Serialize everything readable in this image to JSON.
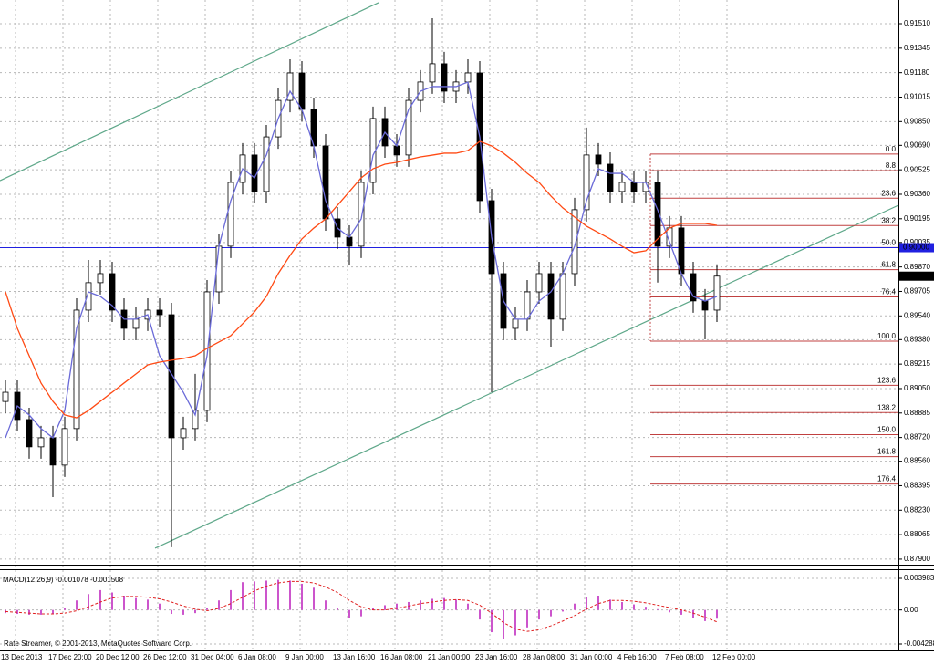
{
  "chart_data": [
    {
      "type": "candlestick",
      "categories": [
        "13 Dec 2013",
        null,
        null,
        null,
        "17 Dec 20:00",
        null,
        null,
        null,
        "20 Dec 12:00",
        null,
        null,
        null,
        "26 Dec 12:00",
        null,
        null,
        null,
        "31 Dec 04:00",
        null,
        null,
        null,
        "6 Jan 08:00",
        null,
        null,
        null,
        "9 Jan 00:00",
        null,
        null,
        null,
        "13 Jan 16:00",
        null,
        null,
        null,
        "16 Jan 08:00",
        null,
        null,
        null,
        "21 Jan 00:00",
        null,
        null,
        null,
        "23 Jan 16:00",
        null,
        null,
        null,
        "28 Jan 08:00",
        null,
        null,
        null,
        "31 Jan 00:00",
        null,
        null,
        null,
        "4 Feb 16:00",
        null,
        null,
        null,
        "7 Feb 08:00",
        null,
        null,
        null,
        "12 Feb 00:00"
      ],
      "open": [
        0.88963,
        0.89025,
        0.88841,
        0.88657,
        0.88718,
        0.88534,
        0.8878,
        0.89579,
        0.89764,
        0.89825,
        0.89579,
        0.89456,
        0.89518,
        0.89579,
        0.89548,
        0.88718,
        0.8878,
        0.88903,
        0.89702,
        0.9001,
        0.9044,
        0.90625,
        0.90379,
        0.90747,
        0.90993,
        0.91178,
        0.90932,
        0.90686,
        0.90194,
        0.90071,
        0.9001,
        0.9044,
        0.90871,
        0.90686,
        0.90625,
        0.90993,
        0.91117,
        0.9124,
        0.91055,
        0.91117,
        0.91178,
        0.90317,
        0.89825,
        0.89456,
        0.89518,
        0.89702,
        0.89825,
        0.89518,
        0.89825,
        0.90256,
        0.90625,
        0.90563,
        0.90379,
        0.9044,
        0.90379,
        0.9044,
        0.9001,
        0.90133,
        0.89825,
        0.89641,
        0.89579
      ],
      "high": [
        0.89105,
        0.89105,
        0.88921,
        0.88798,
        0.88798,
        0.8886,
        0.89659,
        0.89917,
        0.89917,
        0.89905,
        0.89659,
        0.89598,
        0.89659,
        0.89659,
        0.89628,
        0.8886,
        0.89149,
        0.89782,
        0.9009,
        0.9052,
        0.90705,
        0.90705,
        0.90827,
        0.91073,
        0.9127,
        0.91258,
        0.91012,
        0.90766,
        0.90274,
        0.90151,
        0.9052,
        0.90951,
        0.90951,
        0.90766,
        0.91073,
        0.91197,
        0.91547,
        0.9132,
        0.91197,
        0.9127,
        0.91258,
        0.90397,
        0.89905,
        0.89598,
        0.89782,
        0.89905,
        0.89905,
        0.89905,
        0.90336,
        0.9081,
        0.90705,
        0.90643,
        0.9052,
        0.9052,
        0.9052,
        0.9052,
        0.90213,
        0.90213,
        0.89905,
        0.89721,
        0.89888
      ],
      "low": [
        0.88883,
        0.88761,
        0.88577,
        0.88577,
        0.88318,
        0.88454,
        0.887,
        0.89499,
        0.89684,
        0.89499,
        0.89376,
        0.89376,
        0.89438,
        0.89468,
        0.8798,
        0.88638,
        0.887,
        0.88823,
        0.89622,
        0.8993,
        0.9036,
        0.90299,
        0.90299,
        0.90667,
        0.90913,
        0.90852,
        0.90606,
        0.90114,
        0.89991,
        0.8988,
        0.8993,
        0.9036,
        0.90606,
        0.90545,
        0.90545,
        0.90913,
        0.91037,
        0.90975,
        0.90975,
        0.91037,
        0.90237,
        0.89025,
        0.89376,
        0.89376,
        0.89438,
        0.89622,
        0.89333,
        0.89438,
        0.89745,
        0.90176,
        0.90483,
        0.90299,
        0.90299,
        0.90299,
        0.90299,
        0.89765,
        0.8993,
        0.89745,
        0.89561,
        0.89382,
        0.89499
      ],
      "close": [
        0.89025,
        0.88841,
        0.88657,
        0.88718,
        0.88534,
        0.8878,
        0.89579,
        0.89764,
        0.89825,
        0.89579,
        0.89456,
        0.89518,
        0.89579,
        0.89548,
        0.88718,
        0.8878,
        0.88903,
        0.89702,
        0.9001,
        0.9044,
        0.90625,
        0.90379,
        0.90747,
        0.90993,
        0.91178,
        0.90932,
        0.90686,
        0.90194,
        0.90071,
        0.9001,
        0.9044,
        0.90871,
        0.90686,
        0.90625,
        0.90993,
        0.91117,
        0.9124,
        0.91055,
        0.91117,
        0.91178,
        0.90317,
        0.89825,
        0.89456,
        0.89518,
        0.89702,
        0.89825,
        0.89518,
        0.89825,
        0.90256,
        0.90625,
        0.90563,
        0.90379,
        0.9044,
        0.90379,
        0.9044,
        0.9001,
        0.90133,
        0.89825,
        0.89641,
        0.89579,
        0.89808
      ],
      "color": "#000000",
      "series": [
        {
          "color": "#6a6ad8",
          "values": [
            0.88718,
            0.88933,
            0.88872,
            0.8878,
            0.88718,
            0.88902,
            0.89456,
            0.89702,
            0.89671,
            0.8961,
            0.89518,
            0.89518,
            0.89548,
            0.89271,
            0.89148,
            0.89025,
            0.88872,
            0.89271,
            0.90009,
            0.90317,
            0.90532,
            0.90471,
            0.90624,
            0.9087,
            0.91055,
            0.90932,
            0.90686,
            0.90317,
            0.90132,
            0.90071,
            0.90194,
            0.90624,
            0.90778,
            0.90686,
            0.90932,
            0.91055,
            0.91086,
            0.91086,
            0.91086,
            0.91116,
            0.90747,
            0.90071,
            0.8964,
            0.89518,
            0.89518,
            0.8964,
            0.89702,
            0.89825,
            0.90009,
            0.90317,
            0.90532,
            0.90501,
            0.90501,
            0.9044,
            0.9044,
            0.90255,
            0.9004,
            0.89825,
            0.89671,
            0.8964,
            0.89671
          ]
        },
        {
          "color": "#ff4a14",
          "values": [
            0.89702,
            0.89456,
            0.89271,
            0.89087,
            0.88964,
            0.88872,
            0.88853,
            0.88902,
            0.88964,
            0.89025,
            0.89087,
            0.89148,
            0.8921,
            0.89228,
            0.89241,
            0.89253,
            0.89271,
            0.89321,
            0.89364,
            0.89407,
            0.89487,
            0.89567,
            0.89671,
            0.89825,
            0.89948,
            0.90059,
            0.90132,
            0.90194,
            0.90286,
            0.90378,
            0.90471,
            0.90532,
            0.90563,
            0.90575,
            0.90594,
            0.90612,
            0.90624,
            0.90637,
            0.90637,
            0.90655,
            0.90717,
            0.90686,
            0.90637,
            0.90575,
            0.90501,
            0.9044,
            0.90348,
            0.90268,
            0.90206,
            0.90145,
            0.90102,
            0.90059,
            0.90009,
            0.89966,
            0.89979,
            0.90059,
            0.90132,
            0.90163,
            0.90163,
            0.90163,
            0.90151
          ]
        }
      ],
      "channel": {
        "color": "#5fa88a",
        "upper": [
          0.90452,
          0.91652
        ],
        "lower": [
          0.87974,
          0.90286
        ]
      },
      "hline": {
        "value": 0.9,
        "label": "0.90000",
        "color": "#2020e0"
      },
      "last_price": {
        "value": 0.89808,
        "label": "0.89808"
      },
      "fibo": {
        "color": "#c04040",
        "high": 0.90631,
        "low": 0.8937,
        "levels": [
          {
            "value": 0,
            "label": "0.0"
          },
          8.8,
          23.6,
          38.2,
          {
            "value": 50,
            "label": "50.0"
          },
          61.8,
          76.4,
          {
            "value": 100,
            "label": "100.0"
          },
          123.6,
          138.2,
          {
            "value": 150,
            "label": "150.0"
          },
          161.8,
          176.4
        ]
      },
      "ylim": [
        0.87875,
        0.9167
      ],
      "yticks": [
        {
          "value": 0.9151,
          "label": "0.91510"
        },
        {
          "value": 0.91345,
          "label": "0.91345"
        },
        {
          "value": 0.9118,
          "label": "0.91180"
        },
        {
          "value": 0.91015,
          "label": "0.91015"
        },
        {
          "value": 0.9085,
          "label": "0.90850"
        },
        {
          "value": 0.9069,
          "label": "0.90690"
        },
        {
          "value": 0.90525,
          "label": "0.90525"
        },
        {
          "value": 0.9036,
          "label": "0.90360"
        },
        {
          "value": 0.90195,
          "label": "0.90195"
        },
        {
          "value": 0.90035,
          "label": "0.90035"
        },
        {
          "value": 0.8987,
          "label": "0.89870"
        },
        {
          "value": 0.89705,
          "label": "0.89705"
        },
        {
          "value": 0.8954,
          "label": "0.89540"
        },
        {
          "value": 0.8938,
          "label": "0.89380"
        },
        {
          "value": 0.89215,
          "label": "0.89215"
        },
        {
          "value": 0.8905,
          "label": "0.89050"
        },
        {
          "value": 0.88885,
          "label": "0.88885"
        },
        {
          "value": 0.8872,
          "label": "0.88720"
        },
        {
          "value": 0.8856,
          "label": "0.88560"
        },
        {
          "value": 0.88395,
          "label": "0.88395"
        },
        {
          "value": 0.8823,
          "label": "0.88230"
        },
        {
          "value": 0.88065,
          "label": "0.88065"
        },
        {
          "value": 0.879,
          "label": "0.87900"
        }
      ],
      "grid": true
    },
    {
      "type": "macd",
      "title": "MACD(12,26,9) -0.001078 -0.001508",
      "color": "#cc55cc",
      "values": [
        -0.0004,
        -0.0005,
        -0.0006,
        -0.0006,
        -0.0005,
        0.0002,
        0.0012,
        0.002,
        0.0025,
        0.0022,
        0.0018,
        0.0015,
        0.0013,
        0.0008,
        -0.0005,
        -0.0006,
        -0.0004,
        0.0003,
        0.0012,
        0.0025,
        0.0035,
        0.0036,
        0.0037,
        0.0038,
        0.0037,
        0.0033,
        0.0028,
        0.0012,
        0.0002,
        -0.001,
        -0.0008,
        0.0002,
        0.0006,
        0.0008,
        0.001,
        0.0012,
        0.0014,
        0.0015,
        0.0013,
        0.0008,
        -0.0012,
        -0.0028,
        -0.0037,
        -0.0032,
        -0.0022,
        -0.0012,
        -0.0008,
        -0.0002,
        0.0008,
        0.0016,
        0.0018,
        0.0013,
        0.001,
        0.0007,
        0.0004,
        0.0001,
        -0.0003,
        -0.0006,
        -0.001,
        -0.0014,
        -0.0011
      ],
      "series": [
        {
          "color": "#e02020",
          "values": [
            -0.0002,
            -0.0003,
            -0.0004,
            -0.0005,
            -0.0005,
            -0.0004,
            -0.0001,
            0.0004,
            0.001,
            0.0015,
            0.0017,
            0.0017,
            0.0016,
            0.0014,
            0.001,
            0.0005,
            0.0001,
            -0.0001,
            0.0002,
            0.0008,
            0.0016,
            0.0024,
            0.003,
            0.0034,
            0.0036,
            0.0036,
            0.0034,
            0.0029,
            0.0022,
            0.0012,
            0.0004,
            0,
            0,
            0.0002,
            0.0005,
            0.0008,
            0.001,
            0.0012,
            0.0013,
            0.0012,
            0.0006,
            -0.0004,
            -0.0016,
            -0.0024,
            -0.0027,
            -0.0025,
            -0.002,
            -0.0014,
            -0.0007,
            0.0001,
            0.0008,
            0.0012,
            0.0012,
            0.0011,
            0.0009,
            0.0006,
            0.0003,
            0,
            -0.0004,
            -0.0009,
            -0.0015
          ]
        }
      ],
      "ylim": [
        -0.004977,
        0.004672
      ],
      "yticks": [
        0.003983,
        {
          "value": 0,
          "label": "0.00"
        },
        -0.004288
      ],
      "grid": true
    }
  ],
  "footer": "Rate Streamer, © 2001-2013, MetaQuotes Software Corp."
}
